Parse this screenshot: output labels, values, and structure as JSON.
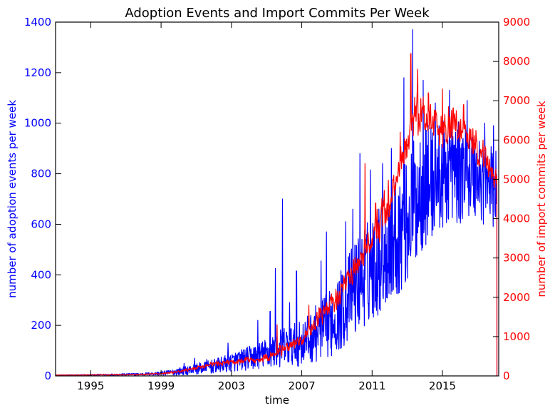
{
  "chart_data": {
    "type": "line",
    "title": "Adoption Events and Import Commits Per Week",
    "xlabel": "time",
    "ylabel_left": "number of adoption events per week",
    "ylabel_right": "number of import commits per week",
    "xlim": [
      1993.0,
      2018.2
    ],
    "ylim_left": [
      0,
      1400
    ],
    "ylim_right": [
      0,
      9000
    ],
    "x_ticks": [
      "1995",
      "1999",
      "2003",
      "2007",
      "2011",
      "2015"
    ],
    "y_ticks_left": [
      "0",
      "200",
      "400",
      "600",
      "800",
      "1000",
      "1200",
      "1400"
    ],
    "y_ticks_right": [
      "0",
      "1000",
      "2000",
      "3000",
      "4000",
      "5000",
      "6000",
      "7000",
      "8000",
      "9000"
    ],
    "grid": false,
    "colors": {
      "left_series": "#0000ff",
      "right_series": "#ff0000",
      "axes": "#000000"
    },
    "series": [
      {
        "axis": "left",
        "color": "#0000ff",
        "x": [
          1993.0,
          1995.0,
          1997.0,
          1998.0,
          1999.0,
          1999.5,
          2000.0,
          2000.5,
          2001.0,
          2001.5,
          2002.0,
          2002.5,
          2003.0,
          2003.5,
          2004.0,
          2004.5,
          2005.0,
          2005.5,
          2006.0,
          2006.5,
          2007.0,
          2007.5,
          2008.0,
          2008.5,
          2009.0,
          2009.5,
          2010.0,
          2010.5,
          2011.0,
          2011.5,
          2012.0,
          2012.5,
          2013.0,
          2013.5,
          2014.0,
          2014.5,
          2015.0,
          2015.5,
          2016.0,
          2016.5,
          2017.0,
          2017.5,
          2018.0
        ],
        "y": [
          3,
          4,
          6,
          7,
          10,
          13,
          18,
          22,
          28,
          32,
          38,
          45,
          55,
          62,
          70,
          78,
          90,
          100,
          115,
          120,
          130,
          150,
          180,
          200,
          240,
          290,
          350,
          390,
          430,
          470,
          520,
          560,
          610,
          700,
          760,
          770,
          790,
          820,
          800,
          810,
          790,
          760,
          740
        ],
        "noise": [
          1,
          2,
          4,
          5,
          8,
          10,
          15,
          18,
          22,
          25,
          28,
          32,
          38,
          42,
          48,
          52,
          60,
          70,
          80,
          85,
          90,
          100,
          120,
          130,
          150,
          170,
          190,
          200,
          210,
          220,
          230,
          240,
          250,
          260,
          250,
          230,
          220,
          210,
          200,
          190,
          180,
          170,
          160
        ],
        "spikes": [
          [
            1999.3,
            20
          ],
          [
            2000.3,
            50
          ],
          [
            2000.9,
            70
          ],
          [
            2001.6,
            65
          ],
          [
            2002.8,
            130
          ],
          [
            2004.5,
            220
          ],
          [
            2005.2,
            255
          ],
          [
            2005.5,
            425
          ],
          [
            2005.9,
            700
          ],
          [
            2006.3,
            290
          ],
          [
            2006.7,
            415
          ],
          [
            2008.1,
            455
          ],
          [
            2008.4,
            570
          ],
          [
            2009.5,
            610
          ],
          [
            2009.9,
            660
          ],
          [
            2010.3,
            880
          ],
          [
            2010.9,
            815
          ],
          [
            2011.6,
            840
          ],
          [
            2012.1,
            900
          ],
          [
            2012.8,
            1180
          ],
          [
            2013.3,
            1370
          ],
          [
            2013.9,
            1170
          ],
          [
            2014.6,
            1080
          ],
          [
            2015.4,
            1130
          ],
          [
            2016.4,
            1090
          ],
          [
            2017.4,
            1000
          ],
          [
            2017.9,
            990
          ]
        ]
      },
      {
        "axis": "right",
        "color": "#ff0000",
        "x": [
          1993.0,
          1995.0,
          1997.0,
          1998.0,
          1999.0,
          1999.5,
          2000.0,
          2000.5,
          2001.0,
          2001.5,
          2002.0,
          2002.5,
          2003.0,
          2003.5,
          2004.0,
          2004.5,
          2005.0,
          2005.5,
          2006.0,
          2006.5,
          2007.0,
          2007.5,
          2008.0,
          2008.5,
          2009.0,
          2009.5,
          2010.0,
          2010.5,
          2011.0,
          2011.5,
          2012.0,
          2012.5,
          2013.0,
          2013.5,
          2014.0,
          2014.5,
          2015.0,
          2015.5,
          2016.0,
          2016.5,
          2017.0,
          2017.5,
          2018.0
        ],
        "y": [
          20,
          25,
          30,
          40,
          60,
          80,
          100,
          150,
          200,
          250,
          300,
          320,
          350,
          380,
          400,
          420,
          450,
          550,
          700,
          800,
          900,
          1200,
          1500,
          1700,
          2000,
          2400,
          2700,
          3100,
          3500,
          4000,
          4500,
          5200,
          6000,
          6800,
          6500,
          6300,
          6200,
          6400,
          6300,
          6100,
          5800,
          5400,
          5000
        ],
        "noise": [
          10,
          12,
          15,
          20,
          25,
          30,
          40,
          50,
          60,
          70,
          80,
          80,
          90,
          90,
          100,
          110,
          120,
          140,
          170,
          190,
          200,
          240,
          280,
          300,
          330,
          360,
          400,
          450,
          500,
          550,
          600,
          650,
          700,
          700,
          650,
          600,
          550,
          550,
          500,
          480,
          450,
          400,
          380
        ],
        "spikes": [
          [
            2005.6,
            1300
          ],
          [
            2007.4,
            1800
          ],
          [
            2010.6,
            5400
          ],
          [
            2011.2,
            4400
          ],
          [
            2012.6,
            6200
          ],
          [
            2013.2,
            8200
          ],
          [
            2013.6,
            7800
          ],
          [
            2014.2,
            7200
          ],
          [
            2015.0,
            7300
          ],
          [
            2016.2,
            6900
          ],
          [
            2017.3,
            6000
          ]
        ]
      }
    ]
  }
}
